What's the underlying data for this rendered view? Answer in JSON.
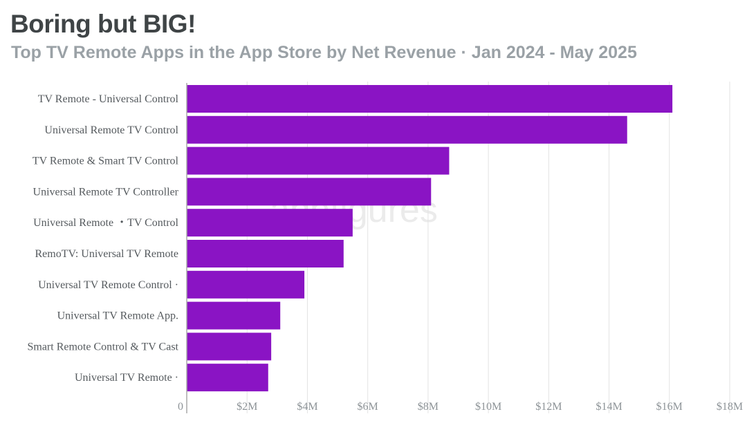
{
  "header": {
    "title": "Boring but BIG!",
    "subtitle": "Top TV Remote Apps in the App Store by Net Revenue · Jan 2024 - May 2025"
  },
  "watermark": "appfigures",
  "colors": {
    "bar": "#8a14c4",
    "grid": "#e3e3e3",
    "axis": "#a8a8a8"
  },
  "chart_data": {
    "type": "bar",
    "orientation": "horizontal",
    "title": "Boring but BIG!",
    "subtitle": "Top TV Remote Apps in the App Store by Net Revenue · Jan 2024 - May 2025",
    "xlabel": "",
    "ylabel": "",
    "categories": [
      "TV Remote - Universal Control",
      "Universal Remote TV Control",
      "TV Remote & Smart TV Control",
      "Universal Remote TV Controller",
      "Universal Remote ・TV Control",
      "RemoTV: Universal TV Remote",
      "Universal TV Remote Control ·",
      "Universal TV Remote App.",
      "Smart Remote Control & TV Cast",
      "Universal TV Remote ·"
    ],
    "values": [
      16.1,
      14.6,
      8.7,
      8.1,
      5.5,
      5.2,
      3.9,
      3.1,
      2.8,
      2.7
    ],
    "unit": "$M",
    "xlim": [
      0,
      18
    ],
    "ticks": [
      0,
      2,
      4,
      6,
      8,
      10,
      12,
      14,
      16,
      18
    ],
    "tick_labels": [
      "0",
      "$2M",
      "$4M",
      "$6M",
      "$8M",
      "$10M",
      "$12M",
      "$14M",
      "$16M",
      "$18M"
    ],
    "grid": true,
    "legend": "none"
  }
}
